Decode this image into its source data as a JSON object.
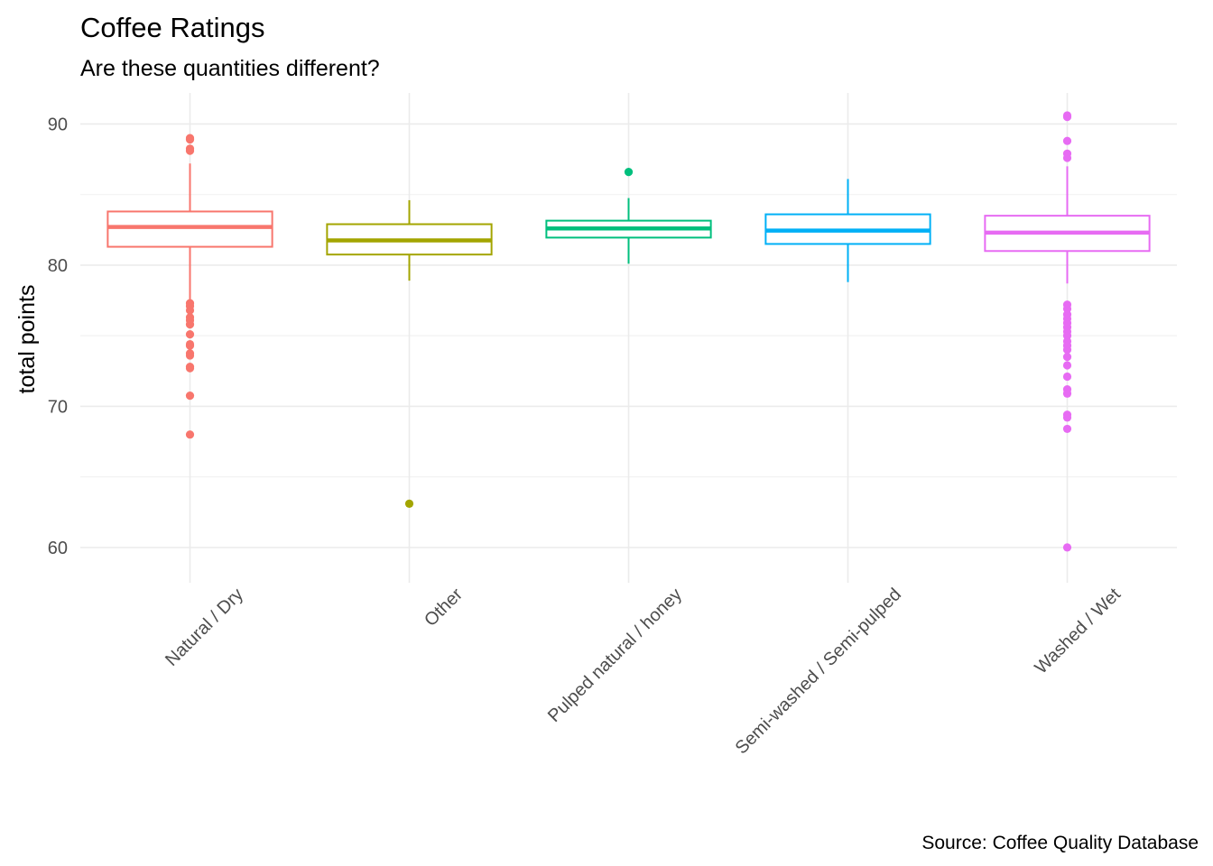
{
  "chart_data": {
    "type": "box",
    "title": "Coffee Ratings",
    "subtitle": "Are these quantities different?",
    "caption": "Source: Coffee Quality Database",
    "xlabel": "",
    "ylabel": "total points",
    "ylim": [
      57.5,
      92.2
    ],
    "yticks": [
      60,
      70,
      80,
      90
    ],
    "grid": true,
    "legend": "none",
    "categories": [
      "Natural / Dry",
      "Other",
      "Pulped natural / honey",
      "Semi-washed / Semi-pulped",
      "Washed / Wet"
    ],
    "series": [
      {
        "color": "#F8766D",
        "whisker_low": 77.4,
        "q1": 81.3,
        "median": 82.7,
        "q3": 83.8,
        "whisker_high": 87.2,
        "outliers": [
          89.0,
          88.9,
          88.25,
          88.1,
          77.3,
          77.1,
          76.8,
          76.3,
          76.1,
          75.8,
          75.1,
          74.4,
          74.3,
          73.75,
          73.6,
          72.8,
          72.7,
          70.75,
          68.0
        ]
      },
      {
        "color": "#A3A500",
        "whisker_low": 78.9,
        "q1": 80.75,
        "median": 81.75,
        "q3": 82.9,
        "whisker_high": 84.6,
        "outliers": [
          63.1
        ]
      },
      {
        "color": "#00BF7D",
        "whisker_low": 80.1,
        "q1": 81.95,
        "median": 82.6,
        "q3": 83.15,
        "whisker_high": 84.75,
        "outliers": [
          86.6
        ]
      },
      {
        "color": "#00B0F6",
        "whisker_low": 78.8,
        "q1": 81.5,
        "median": 82.45,
        "q3": 83.6,
        "whisker_high": 86.1,
        "outliers": []
      },
      {
        "color": "#E76BF3",
        "whisker_low": 78.7,
        "q1": 81.0,
        "median": 82.3,
        "q3": 83.5,
        "whisker_high": 87.0,
        "outliers": [
          90.6,
          90.5,
          88.8,
          87.9,
          87.6,
          77.2,
          76.9,
          76.5,
          76.2,
          75.9,
          75.6,
          75.3,
          75.0,
          74.6,
          74.3,
          74.0,
          73.5,
          72.9,
          72.1,
          71.2,
          70.9,
          69.4,
          69.2,
          68.4,
          60.0
        ]
      }
    ]
  }
}
